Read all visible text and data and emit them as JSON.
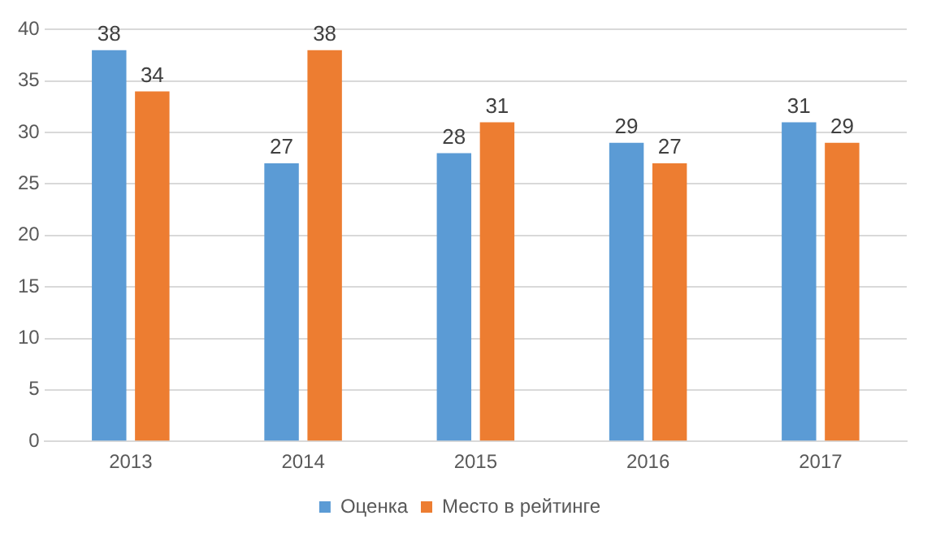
{
  "chart_data": {
    "type": "bar",
    "categories": [
      "2013",
      "2014",
      "2015",
      "2016",
      "2017"
    ],
    "series": [
      {
        "name": "Оценка",
        "color": "#5b9bd5",
        "values": [
          38,
          27,
          28,
          29,
          31
        ]
      },
      {
        "name": "Место в рейтинге",
        "color": "#ed7d31",
        "values": [
          34,
          38,
          31,
          27,
          29
        ]
      }
    ],
    "ylim": [
      0,
      40
    ],
    "yticks": [
      0,
      5,
      10,
      15,
      20,
      25,
      30,
      35,
      40
    ],
    "grid": "y",
    "legend": "bottom",
    "data_labels": true
  }
}
